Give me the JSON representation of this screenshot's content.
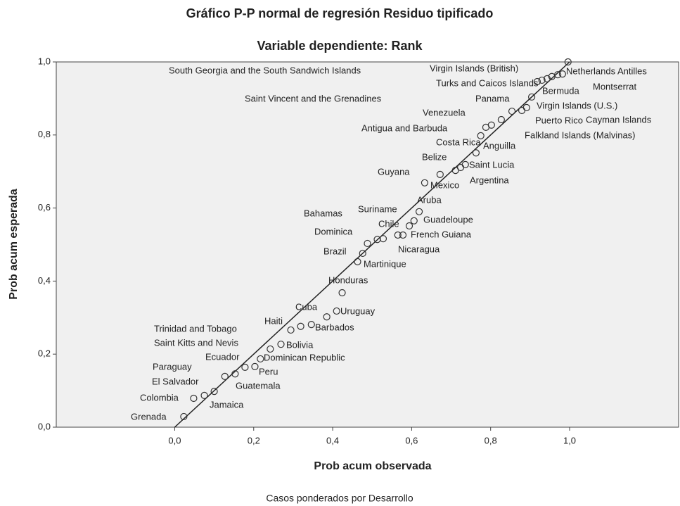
{
  "chart_data": {
    "type": "scatter",
    "title": "Gráfico P-P normal de regresión Residuo tipificado",
    "subtitle": "Variable dependiente: Rank",
    "x_label": "Prob acum observada",
    "y_label": "Prob acum esperada",
    "footnote": "Casos ponderados por Desarrollo",
    "xlim": [
      -0.3,
      1.276
    ],
    "ylim": [
      0,
      1
    ],
    "xticks": [
      {
        "value": 0,
        "label": "0,0"
      },
      {
        "value": 0.2,
        "label": "0,2"
      },
      {
        "value": 0.4,
        "label": "0,4"
      },
      {
        "value": 0.6,
        "label": "0,6"
      },
      {
        "value": 0.8,
        "label": "0,8"
      },
      {
        "value": 1,
        "label": "1,0"
      }
    ],
    "yticks": [
      {
        "value": 0,
        "label": "0,0"
      },
      {
        "value": 0.2,
        "label": "0,2"
      },
      {
        "value": 0.4,
        "label": "0,4"
      },
      {
        "value": 0.6,
        "label": "0,6"
      },
      {
        "value": 0.8,
        "label": "0,8"
      },
      {
        "value": 1,
        "label": "1,0"
      }
    ],
    "plot_background": "#f0f0f0",
    "marker_color": "#333333",
    "reference_line": {
      "x": [
        0,
        1
      ],
      "y": [
        0,
        1
      ],
      "color": "#222222"
    },
    "point_labels": [
      "South Georgia and the South Sandwich Islands",
      "Netherlands Antilles",
      "Virgin Islands (British)",
      "Montserrat",
      "Turks and Caicos Islands",
      "Bermuda",
      "Saint Vincent and the Grenadines",
      "Panama",
      "Virgin Islands (U.S.)",
      "Cayman Islands",
      "Falkland Islands (Malvinas)",
      "Puerto Rico",
      "Venezuela",
      "Antigua and Barbuda",
      "Costa Rica",
      "Anguilla",
      "Saint Lucia",
      "Belize",
      "Argentina",
      "Guyana",
      "Mexico",
      "Aruba",
      "Guadeloupe",
      "Suriname",
      "French Guiana",
      "Bahamas",
      "Chile",
      "Nicaragua",
      "Dominica",
      "Brazil",
      "Martinique",
      "Honduras",
      "Uruguay",
      "Cuba",
      "Barbados",
      "Haiti",
      "Trinidad and Tobago",
      "Bolivia",
      "Saint Kitts and Nevis",
      "Dominican Republic",
      "Peru",
      "Ecuador",
      "Paraguay",
      "El Salvador",
      "Guatemala",
      "Jamaica",
      "Colombia",
      "Grenada"
    ],
    "x": [
      0.996,
      0.982,
      0.97,
      0.955,
      0.943,
      0.93,
      0.918,
      0.904,
      0.891,
      0.879,
      0.854,
      0.827,
      0.802,
      0.788,
      0.775,
      0.763,
      0.736,
      0.724,
      0.711,
      0.672,
      0.633,
      0.619,
      0.606,
      0.594,
      0.578,
      0.565,
      0.528,
      0.513,
      0.488,
      0.476,
      0.463,
      0.424,
      0.41,
      0.385,
      0.346,
      0.319,
      0.294,
      0.269,
      0.242,
      0.217,
      0.203,
      0.178,
      0.153,
      0.127,
      0.1,
      0.075,
      0.048,
      0.023
    ],
    "values": [
      1.0,
      0.967,
      0.965,
      0.96,
      0.954,
      0.95,
      0.946,
      0.904,
      0.875,
      0.867,
      0.865,
      0.842,
      0.827,
      0.821,
      0.798,
      0.751,
      0.719,
      0.711,
      0.703,
      0.692,
      0.669,
      0.59,
      0.565,
      0.551,
      0.526,
      0.526,
      0.516,
      0.514,
      0.503,
      0.476,
      0.453,
      0.368,
      0.318,
      0.302,
      0.281,
      0.276,
      0.266,
      0.227,
      0.214,
      0.187,
      0.166,
      0.164,
      0.146,
      0.139,
      0.098,
      0.087,
      0.079,
      0.029
    ]
  }
}
